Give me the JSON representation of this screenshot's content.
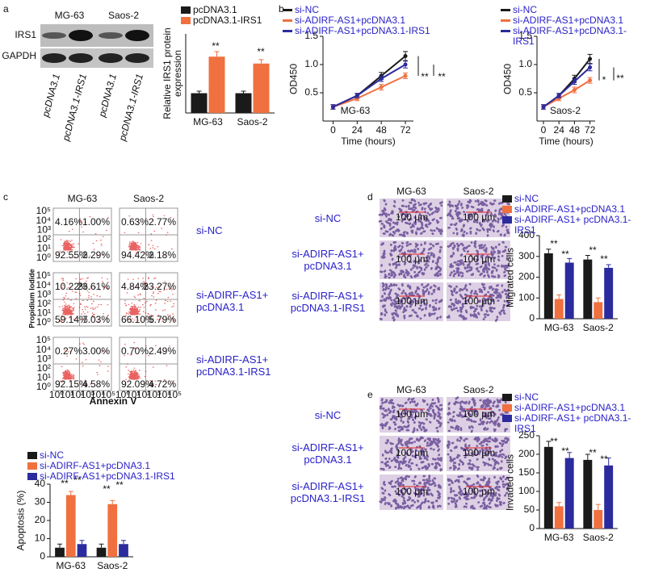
{
  "panels": {
    "labels": [
      "a",
      "b",
      "c",
      "d",
      "e"
    ]
  },
  "blot": {
    "cell_lines": [
      "MG-63",
      "Saos-2"
    ],
    "proteins": [
      "IRS1",
      "GAPDH"
    ],
    "lanes": [
      "pcDNA3.1",
      "pcDNA3.1-IRS1",
      "pcDNA3.1",
      "pcDNA3.1-IRS1"
    ]
  },
  "flow": {
    "columns": [
      "MG-63",
      "Saos-2"
    ],
    "rows": [
      "si-NC",
      "si-ADIRF-AS1+ pcDNA3.1",
      "si-ADIRF-AS1+ pcDNA3.1-IRS1"
    ],
    "quadrants": [
      [
        [
          "4.16%",
          "1.00%",
          "92.55%",
          "2.29%"
        ],
        [
          "0.63%",
          "2.77%",
          "94.42%",
          "2.18%"
        ]
      ],
      [
        [
          "10.22%",
          "23.61%",
          "59.14%",
          "7.03%"
        ],
        [
          "4.84%",
          "23.27%",
          "66.10%",
          "5.79%"
        ]
      ],
      [
        [
          "0.27%",
          "3.00%",
          "92.15%",
          "4.58%"
        ],
        [
          "0.70%",
          "2.49%",
          "92.09%",
          "4.72%"
        ]
      ]
    ],
    "ylabel": "Propidium Iodide",
    "xlabel": "Annexin V",
    "ticks": [
      "10⁰",
      "10¹",
      "10²",
      "10³",
      "10⁴",
      "10⁵"
    ]
  },
  "migration": {
    "columns": [
      "MG-63",
      "Saos-2"
    ],
    "rows": [
      "si-NC",
      "si-ADIRF-AS1+ pcDNA3.1",
      "si-ADIRF-AS1+ pcDNA3.1-IRS1"
    ],
    "scale": "100 μm"
  },
  "invasion": {
    "columns": [
      "MG-63",
      "Saos-2"
    ],
    "rows": [
      "si-NC",
      "si-ADIRF-AS1+ pcDNA3.1",
      "si-ADIRF-AS1+ pcDNA3.1-IRS1"
    ],
    "scale": "100 μm"
  },
  "chart_data": [
    {
      "type": "bar",
      "ylabel": "Relative IRS1 protein expression",
      "categories": [
        "MG-63",
        "Saos-2"
      ],
      "ylim": [
        0,
        4
      ],
      "series": [
        {
          "name": "pcDNA3.1",
          "color": "#1a1a1a",
          "values": [
            1.0,
            1.0
          ],
          "errors": [
            0.1,
            0.1
          ]
        },
        {
          "name": "pcDNA3.1-IRS1",
          "color": "#f07040",
          "values": [
            2.85,
            2.5
          ],
          "errors": [
            0.25,
            0.2
          ]
        }
      ],
      "annotations": [
        "**",
        "**"
      ]
    },
    {
      "type": "line",
      "xlabel": "Time (hours)",
      "ylabel": "OD450",
      "x": [
        0,
        24,
        48,
        72
      ],
      "xlim": [
        -10,
        80
      ],
      "xticks": [
        0,
        24,
        48,
        72
      ],
      "ylim": [
        0,
        1.5
      ],
      "yticks": [
        0.5,
        {
          "value": 1,
          "label": "1.0"
        },
        1.5
      ],
      "series": [
        {
          "name": "si-NC",
          "color": "#1a1a1a",
          "values": [
            0.25,
            0.45,
            0.8,
            1.15
          ],
          "errors": [
            0.04,
            0.04,
            0.06,
            0.08
          ]
        },
        {
          "name": "si-ADIRF-AS1+pcDNA3.1",
          "color": "#f07040",
          "values": [
            0.25,
            0.4,
            0.6,
            0.8
          ],
          "errors": [
            0.04,
            0.04,
            0.05,
            0.05
          ]
        },
        {
          "name": "si-ADIRF-AS1+pcDNA3.1-IRS1",
          "color": "#2b2b9e",
          "values": [
            0.25,
            0.45,
            0.75,
            1.0
          ],
          "errors": [
            0.04,
            0.04,
            0.05,
            0.06
          ]
        }
      ],
      "annotations": [
        "MG-63",
        "**",
        "**"
      ]
    },
    {
      "type": "line",
      "xlabel": "Time (hours)",
      "ylabel": "OD450",
      "x": [
        0,
        24,
        48,
        72
      ],
      "xlim": [
        -10,
        80
      ],
      "xticks": [
        0,
        24,
        48,
        72
      ],
      "ylim": [
        0,
        1.5
      ],
      "yticks": [
        0.5,
        {
          "value": 1,
          "label": "1.0"
        },
        1.5
      ],
      "series": [
        {
          "name": "si-NC",
          "color": "#1a1a1a",
          "values": [
            0.25,
            0.45,
            0.75,
            1.1
          ],
          "errors": [
            0.04,
            0.04,
            0.06,
            0.08
          ]
        },
        {
          "name": "si-ADIRF-AS1+pcDNA3.1",
          "color": "#f07040",
          "values": [
            0.25,
            0.4,
            0.55,
            0.72
          ],
          "errors": [
            0.04,
            0.04,
            0.05,
            0.05
          ]
        },
        {
          "name": "si-ADIRF-AS1+pcDNA3.1-IRS1",
          "color": "#2b2b9e",
          "values": [
            0.25,
            0.45,
            0.7,
            0.95
          ],
          "errors": [
            0.04,
            0.04,
            0.05,
            0.06
          ]
        }
      ],
      "annotations": [
        "Saos-2",
        "*",
        "**"
      ]
    },
    {
      "type": "bar",
      "ylabel": "Apoptosis (%)",
      "categories": [
        "MG-63",
        "Saos-2"
      ],
      "ylim": [
        0,
        40
      ],
      "yticks": [
        0,
        10,
        20,
        30,
        40
      ],
      "series": [
        {
          "name": "si-NC",
          "color": "#1a1a1a",
          "values": [
            5,
            5
          ],
          "errors": [
            2,
            2
          ]
        },
        {
          "name": "si-ADIRF-AS1+pcDNA3.1",
          "color": "#f07040",
          "values": [
            34,
            29
          ],
          "errors": [
            2,
            2
          ]
        },
        {
          "name": "si-ADIRF-AS1+pcDNA3.1-IRS1",
          "color": "#2b2b9e",
          "values": [
            7,
            7
          ],
          "errors": [
            2,
            2
          ]
        }
      ],
      "annotations": [
        "**",
        "**",
        "**",
        "**"
      ]
    },
    {
      "type": "bar",
      "ylabel": "Migrated cells",
      "categories": [
        "MG-63",
        "Saos-2"
      ],
      "ylim": [
        0,
        400
      ],
      "yticks": [
        0,
        100,
        200,
        300,
        400
      ],
      "series": [
        {
          "name": "si-NC",
          "color": "#1a1a1a",
          "values": [
            315,
            285
          ],
          "errors": [
            20,
            20
          ]
        },
        {
          "name": "si-ADIRF-AS1+pcDNA3.1",
          "color": "#f07040",
          "values": [
            95,
            80
          ],
          "errors": [
            20,
            20
          ]
        },
        {
          "name": "si-ADIRF-AS1+ pcDNA3.1-IRS1",
          "color": "#2b2b9e",
          "values": [
            270,
            245
          ],
          "errors": [
            20,
            15
          ]
        }
      ],
      "annotations": [
        "**",
        "**",
        "**",
        "**"
      ]
    },
    {
      "type": "bar",
      "ylabel": "Invaded cells",
      "categories": [
        "MG-63",
        "Saos-2"
      ],
      "ylim": [
        0,
        250
      ],
      "yticks": [
        0,
        50,
        100,
        150,
        200,
        250
      ],
      "series": [
        {
          "name": "si-NC",
          "color": "#1a1a1a",
          "values": [
            220,
            185
          ],
          "errors": [
            15,
            15
          ]
        },
        {
          "name": "si-ADIRF-AS1+pcDNA3.1",
          "color": "#f07040",
          "values": [
            60,
            50
          ],
          "errors": [
            10,
            15
          ]
        },
        {
          "name": "si-ADIRF-AS1+ pcDNA3.1-IRS1",
          "color": "#2b2b9e",
          "values": [
            190,
            170
          ],
          "errors": [
            15,
            20
          ]
        }
      ],
      "annotations": [
        "**",
        "**",
        "**",
        "**"
      ]
    }
  ]
}
